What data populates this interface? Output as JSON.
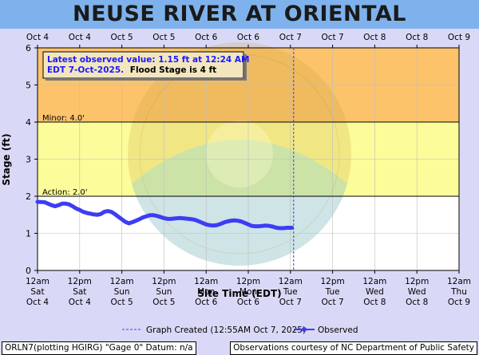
{
  "page_title": "NEUSE RIVER AT ORIENTAL",
  "colors": {
    "title_bar": "#7fb2ec",
    "background": "#d9d9f7",
    "moderate_band": "#fcc36b",
    "minor_band": "#fcfc9a",
    "below_action_band": "#ffffff",
    "observed_line": "#3d3df5",
    "graph_created_line": "#3d3df5"
  },
  "info_box": {
    "line1": "Latest observed value: 1.15 ft at 12:24 AM",
    "line2_prefix": "EDT 7-Oct-2025.",
    "line2_suffix": "Flood Stage is 4 ft"
  },
  "footer": {
    "left": "ORLN7(plotting HGIRG) \"Gage 0\" Datum: n/a",
    "right": "Observations courtesy of NC Department of Public Safety"
  },
  "chart_data": {
    "type": "line",
    "xlabel": "Site Time (EDT)",
    "ylabel": "Stage (ft)",
    "ylim": [
      0,
      6
    ],
    "xlim_hours": [
      0,
      120
    ],
    "grid": true,
    "x_ticks_hours": [
      0,
      12,
      24,
      36,
      48,
      60,
      72,
      84,
      96,
      108,
      120
    ],
    "x_tick_labels_bottom": [
      [
        "12am",
        "Sat",
        "Oct 4"
      ],
      [
        "12pm",
        "Sat",
        "Oct 4"
      ],
      [
        "12am",
        "Sun",
        "Oct 5"
      ],
      [
        "12pm",
        "Sun",
        "Oct 5"
      ],
      [
        "12am",
        "Mon",
        "Oct 6"
      ],
      [
        "12pm",
        "Mon",
        "Oct 6"
      ],
      [
        "12am",
        "Tue",
        "Oct 7"
      ],
      [
        "12pm",
        "Tue",
        "Oct 7"
      ],
      [
        "12am",
        "Wed",
        "Oct 8"
      ],
      [
        "12pm",
        "Wed",
        "Oct 8"
      ],
      [
        "12am",
        "Thu",
        "Oct 9"
      ]
    ],
    "x_tick_labels_top": [
      "Oct 4",
      "Oct 4",
      "Oct 5",
      "Oct 5",
      "Oct 6",
      "Oct 6",
      "Oct 7",
      "Oct 7",
      "Oct 8",
      "Oct 8",
      "Oct 9"
    ],
    "y_ticks": [
      0,
      1,
      2,
      3,
      4,
      5,
      6
    ],
    "thresholds": [
      {
        "label": "Minor: 4.0'",
        "value": 4.0
      },
      {
        "label": "Action: 2.0'",
        "value": 2.0
      }
    ],
    "flood_stage_ft": 4,
    "graph_created_hour": 72.9,
    "legend": {
      "graph_created_label": "Graph Created (12:55AM Oct 7, 2025)",
      "observed_label": "Observed"
    },
    "series": [
      {
        "name": "Observed",
        "x_hours": [
          0,
          2,
          3,
          4,
          5,
          6,
          7,
          8,
          9,
          10,
          11,
          12,
          13,
          14,
          15,
          16,
          17,
          18,
          19,
          20,
          21,
          22,
          23,
          24,
          25,
          26,
          27,
          28,
          29,
          30,
          31,
          32,
          33,
          34,
          35,
          36,
          37,
          38,
          39,
          40,
          41,
          42,
          43,
          44,
          45,
          46,
          47,
          48,
          49,
          50,
          51,
          52,
          53,
          54,
          55,
          56,
          57,
          58,
          59,
          60,
          61,
          62,
          63,
          64,
          65,
          66,
          67,
          68,
          69,
          70,
          71,
          72.4
        ],
        "values": [
          1.85,
          1.84,
          1.8,
          1.76,
          1.73,
          1.76,
          1.8,
          1.8,
          1.78,
          1.73,
          1.67,
          1.63,
          1.58,
          1.55,
          1.53,
          1.51,
          1.5,
          1.52,
          1.58,
          1.6,
          1.58,
          1.52,
          1.45,
          1.38,
          1.31,
          1.27,
          1.3,
          1.34,
          1.38,
          1.43,
          1.46,
          1.49,
          1.49,
          1.47,
          1.44,
          1.41,
          1.39,
          1.39,
          1.4,
          1.41,
          1.41,
          1.4,
          1.39,
          1.38,
          1.36,
          1.32,
          1.28,
          1.24,
          1.22,
          1.21,
          1.22,
          1.25,
          1.29,
          1.32,
          1.34,
          1.35,
          1.34,
          1.32,
          1.28,
          1.24,
          1.2,
          1.19,
          1.19,
          1.2,
          1.21,
          1.2,
          1.18,
          1.15,
          1.14,
          1.14,
          1.15,
          1.15
        ]
      }
    ]
  }
}
